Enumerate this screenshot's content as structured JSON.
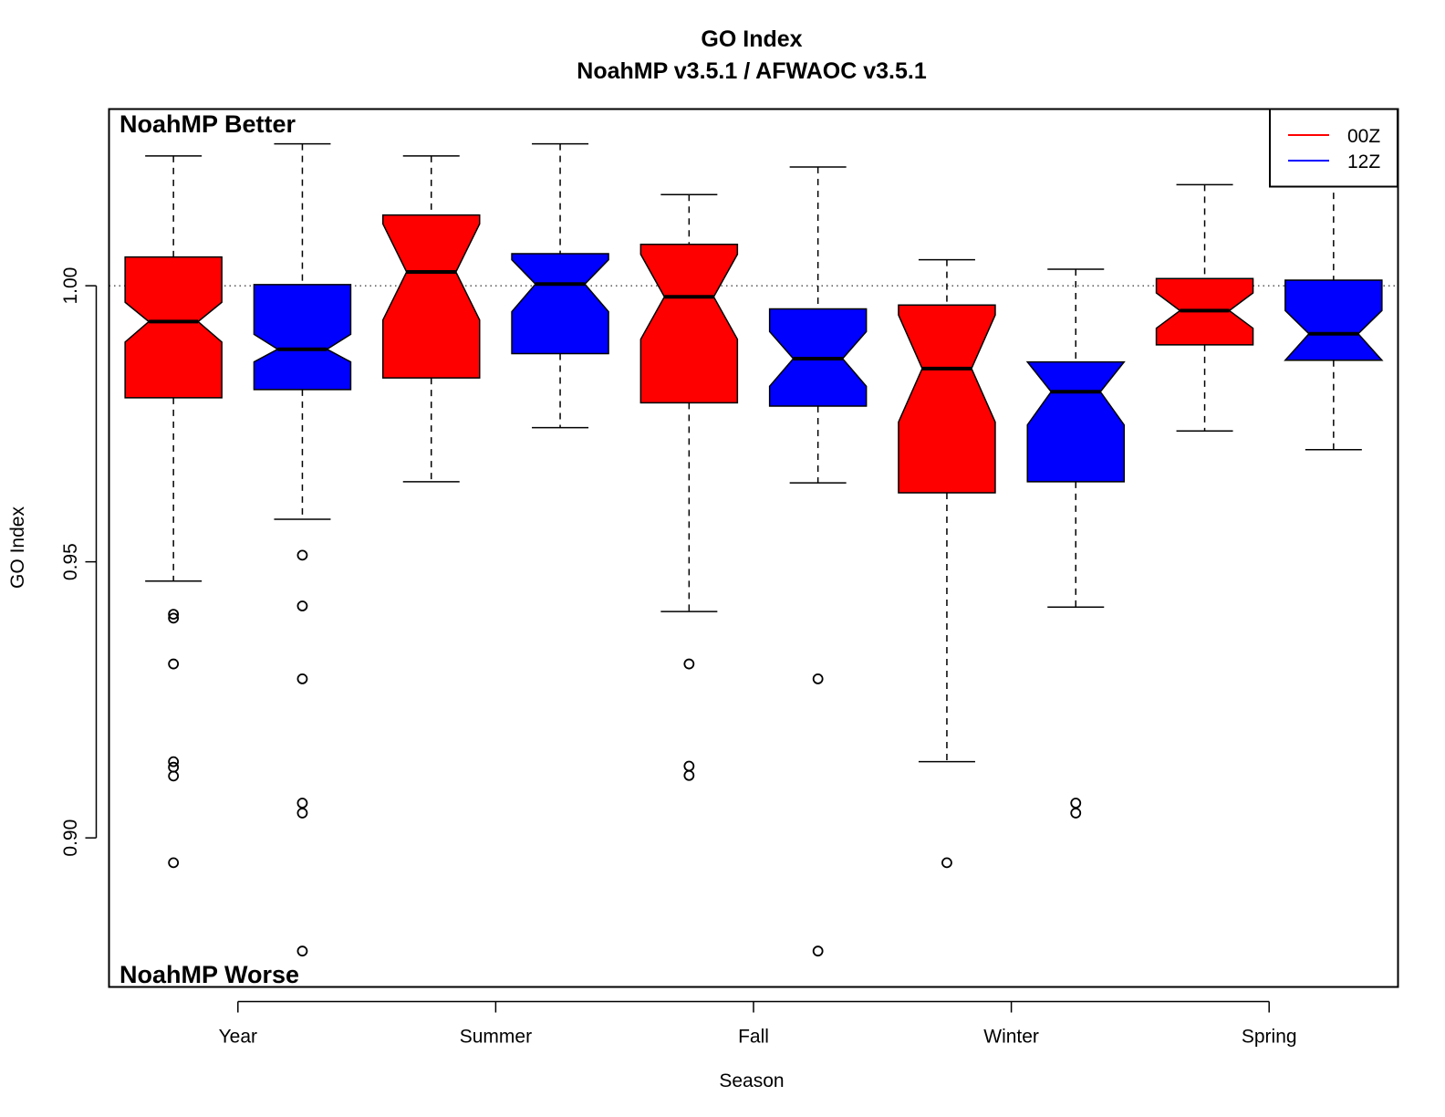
{
  "chart_data": {
    "type": "boxplot",
    "title": "GO Index",
    "subtitle": "NoahMP v3.5.1 / AFWAOC v3.5.1",
    "xlabel": "Season",
    "ylabel": "GO Index",
    "categories": [
      "Year",
      "Summer",
      "Fall",
      "Winter",
      "Spring"
    ],
    "yticks": [
      "0.90",
      "0.95",
      "1.00"
    ],
    "ylim": [
      0.873,
      1.032
    ],
    "reference_line": 1.0,
    "annotations": {
      "top_left": "NoahMP Better",
      "bottom_left": "NoahMP Worse"
    },
    "legend": {
      "position": "top-right",
      "entries": [
        {
          "label": "00Z",
          "color": "#ff0000"
        },
        {
          "label": "12Z",
          "color": "#0000ff"
        }
      ]
    },
    "series": [
      {
        "name": "00Z",
        "color": "#ff0000",
        "boxes": [
          {
            "category": "Year",
            "whisker_low": 0.9465,
            "q1": 0.9797,
            "median": 0.9935,
            "q3": 1.0052,
            "whisker_high": 1.0235,
            "notch_low": 0.9898,
            "notch_high": 0.997,
            "outliers": [
              0.9405,
              0.9398,
              0.9315,
              0.9138,
              0.9128,
              0.9112,
              0.8955
            ]
          },
          {
            "category": "Summer",
            "whisker_low": 0.9645,
            "q1": 0.9833,
            "median": 1.0025,
            "q3": 1.0128,
            "whisker_high": 1.0235,
            "notch_low": 0.9938,
            "notch_high": 1.0112,
            "outliers": []
          },
          {
            "category": "Fall",
            "whisker_low": 0.941,
            "q1": 0.9788,
            "median": 0.998,
            "q3": 1.0075,
            "whisker_high": 1.0165,
            "notch_low": 0.9903,
            "notch_high": 1.0057,
            "outliers": [
              0.9315,
              0.913,
              0.9113
            ]
          },
          {
            "category": "Winter",
            "whisker_low": 0.9138,
            "q1": 0.9625,
            "median": 0.985,
            "q3": 0.9965,
            "whisker_high": 1.0047,
            "notch_low": 0.9753,
            "notch_high": 0.9947,
            "outliers": [
              0.8955
            ]
          },
          {
            "category": "Spring",
            "whisker_low": 0.9737,
            "q1": 0.9893,
            "median": 0.9955,
            "q3": 1.0013,
            "whisker_high": 1.0183,
            "notch_low": 0.9923,
            "notch_high": 0.9987,
            "outliers": []
          }
        ]
      },
      {
        "name": "12Z",
        "color": "#0000ff",
        "boxes": [
          {
            "category": "Year",
            "whisker_low": 0.9577,
            "q1": 0.9812,
            "median": 0.9885,
            "q3": 1.0002,
            "whisker_high": 1.0257,
            "notch_low": 0.9862,
            "notch_high": 0.9912,
            "outliers": [
              0.9512,
              0.942,
              0.9288,
              0.9063,
              0.9045,
              0.8795
            ]
          },
          {
            "category": "Summer",
            "whisker_low": 0.9743,
            "q1": 0.9877,
            "median": 1.0003,
            "q3": 1.0058,
            "whisker_high": 1.0257,
            "notch_low": 0.9953,
            "notch_high": 1.0047,
            "outliers": []
          },
          {
            "category": "Fall",
            "whisker_low": 0.9643,
            "q1": 0.9782,
            "median": 0.9868,
            "q3": 0.9958,
            "whisker_high": 1.0215,
            "notch_low": 0.9818,
            "notch_high": 0.9917,
            "outliers": [
              0.9288,
              0.8795
            ]
          },
          {
            "category": "Winter",
            "whisker_low": 0.9418,
            "q1": 0.9645,
            "median": 0.9808,
            "q3": 0.9862,
            "whisker_high": 1.003,
            "notch_low": 0.9748,
            "notch_high": 0.9862,
            "outliers": [
              0.9063,
              0.9045
            ]
          },
          {
            "category": "Spring",
            "whisker_low": 0.9703,
            "q1": 0.9865,
            "median": 0.9913,
            "q3": 1.001,
            "whisker_high": 1.019,
            "notch_low": 0.9865,
            "notch_high": 0.9955,
            "outliers": []
          }
        ]
      }
    ],
    "grid": false
  }
}
